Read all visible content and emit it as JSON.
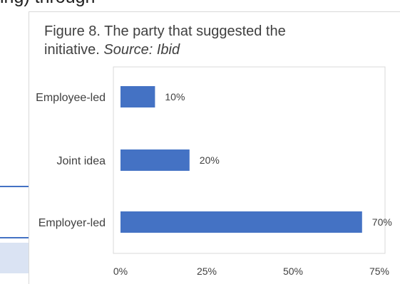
{
  "header_fragment": "ing) through",
  "caption": {
    "text": "Figure 8. The party that suggested the initiative.",
    "source": "Source: Ibid"
  },
  "colors": {
    "bar": "#4472c4",
    "grid": "#d9d9d9",
    "text": "#404040"
  },
  "chart_data": {
    "type": "bar",
    "orientation": "horizontal",
    "title": "",
    "xlabel": "",
    "ylabel": "",
    "categories": [
      "Employee-led",
      "Joint idea",
      "Employer-led"
    ],
    "values": [
      10,
      20,
      70
    ],
    "data_labels": [
      "10%",
      "20%",
      "70%"
    ],
    "xlim": [
      0,
      75
    ],
    "x_ticks": [
      0,
      25,
      50,
      75
    ],
    "x_tick_labels": [
      "0%",
      "25%",
      "50%",
      "75%"
    ],
    "grid": false,
    "legend": "none"
  }
}
